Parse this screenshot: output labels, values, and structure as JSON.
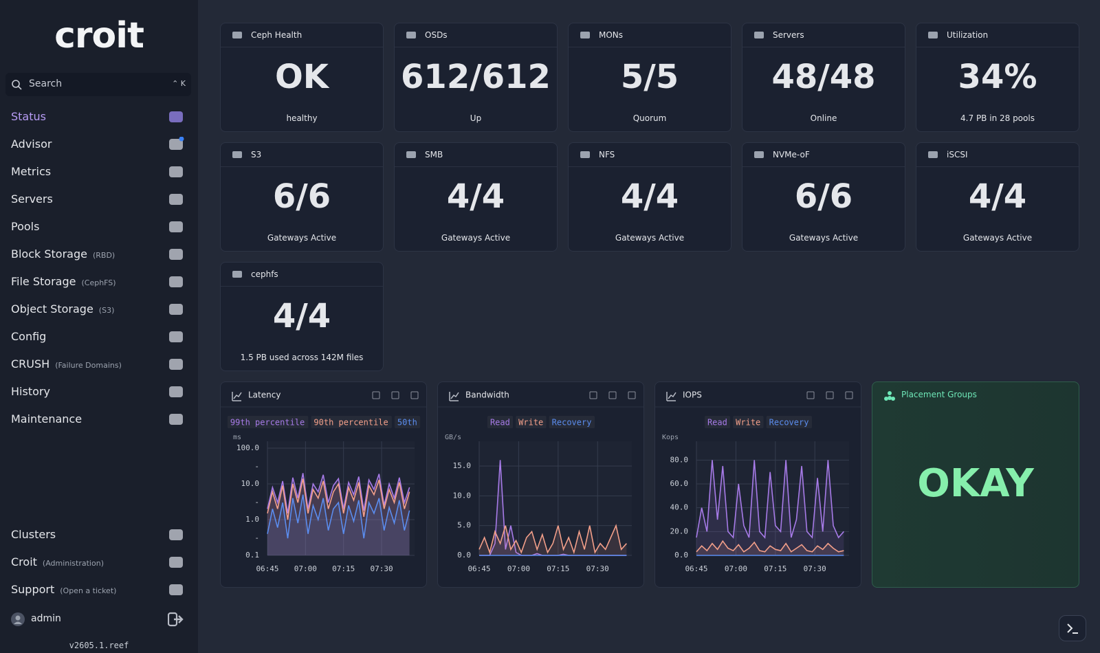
{
  "sidebar": {
    "logo": "croit",
    "search": {
      "placeholder": "Search",
      "shortcut": "⌃ K"
    },
    "nav": [
      {
        "label": "Status"
      },
      {
        "label": "Advisor"
      },
      {
        "label": "Metrics"
      },
      {
        "label": "Servers"
      },
      {
        "label": "Pools"
      },
      {
        "label": "Block Storage",
        "note": "(RBD)"
      },
      {
        "label": "File Storage",
        "note": "(CephFS)"
      },
      {
        "label": "Object Storage",
        "note": "(S3)"
      },
      {
        "label": "Config"
      },
      {
        "label": "CRUSH",
        "note": "(Failure Domains)"
      },
      {
        "label": "History"
      },
      {
        "label": "Maintenance"
      }
    ],
    "bottom_nav": [
      {
        "label": "Clusters"
      },
      {
        "label": "Croit",
        "note": "(Administration)"
      },
      {
        "label": "Support",
        "note": "(Open a ticket)"
      }
    ],
    "user": "admin",
    "version": "v2605.1.reef"
  },
  "cards": [
    {
      "title": "Ceph Health",
      "value": "OK",
      "caption": "healthy"
    },
    {
      "title": "OSDs",
      "value": "612/612",
      "caption": "Up"
    },
    {
      "title": "MONs",
      "value": "5/5",
      "caption": "Quorum"
    },
    {
      "title": "Servers",
      "value": "48/48",
      "caption": "Online"
    },
    {
      "title": "Utilization",
      "value": "34%",
      "caption": "4.7 PB in 28 pools"
    },
    {
      "title": "S3",
      "value": "6/6",
      "caption": "Gateways Active"
    },
    {
      "title": "SMB",
      "value": "4/4",
      "caption": "Gateways Active"
    },
    {
      "title": "NFS",
      "value": "4/4",
      "caption": "Gateways Active"
    },
    {
      "title": "NVMe-oF",
      "value": "6/6",
      "caption": "Gateways Active"
    },
    {
      "title": "iSCSI",
      "value": "4/4",
      "caption": "Gateways Active"
    },
    {
      "title": "cephfs",
      "value": "4/4",
      "caption": "1.5 PB used across 142M files"
    }
  ],
  "charts": [
    {
      "type": "line",
      "title": "Latency",
      "unit": "ms",
      "log_scale": true,
      "grid": true,
      "x": [
        405,
        407,
        409,
        411,
        413,
        415,
        417,
        419,
        421,
        423,
        425,
        427,
        429,
        431,
        433,
        435,
        437,
        439,
        441,
        443,
        445,
        447,
        449,
        451,
        453,
        455,
        457,
        459,
        461
      ],
      "xlim": [
        405,
        463
      ],
      "xticks": [
        {
          "value": 405,
          "label": "06:45"
        },
        {
          "value": 420,
          "label": "07:00"
        },
        {
          "value": 435,
          "label": "07:15"
        },
        {
          "value": 450,
          "label": "07:30"
        }
      ],
      "ylim": [
        0.1,
        100
      ],
      "yticks": [
        0.1,
        {
          "value": 0.3,
          "label": "-"
        },
        {
          "value": 1,
          "label": "1.0"
        },
        {
          "value": 3,
          "label": "-"
        },
        {
          "value": 10,
          "label": "10.0"
        },
        {
          "value": 30,
          "label": "-"
        },
        {
          "value": 100,
          "label": "100.0"
        }
      ],
      "series": [
        {
          "name": "99th percentile",
          "color": "#a77be8",
          "values": [
            2,
            8,
            3,
            12,
            1.5,
            15,
            4,
            20,
            2,
            10,
            6,
            18,
            3,
            9,
            14,
            2,
            11,
            5,
            16,
            1.8,
            13,
            7,
            19,
            2.5,
            10,
            4,
            15,
            3,
            8
          ]
        },
        {
          "name": "90th percentile",
          "color": "#f4a08a",
          "values": [
            1.5,
            6,
            2,
            9,
            1,
            10,
            3,
            14,
            1.5,
            7,
            4,
            12,
            2,
            6,
            10,
            1.5,
            8,
            3.5,
            11,
            1.2,
            9,
            5,
            13,
            2,
            7,
            3,
            11,
            2,
            6
          ]
        },
        {
          "name": "50th",
          "color": "#5b8def",
          "values": [
            0.4,
            2,
            0.6,
            3,
            0.3,
            4,
            0.8,
            5,
            0.4,
            2.5,
            1,
            4,
            0.5,
            2,
            3,
            0.4,
            2.5,
            0.9,
            3.5,
            0.3,
            3,
            1.5,
            4,
            0.5,
            2.2,
            0.8,
            3.5,
            0.5,
            1.8
          ]
        }
      ]
    },
    {
      "type": "line",
      "title": "Bandwidth",
      "unit": "GB/s",
      "log_scale": false,
      "grid": true,
      "x": [
        405,
        407,
        409,
        411,
        413,
        415,
        417,
        419,
        421,
        423,
        425,
        427,
        429,
        431,
        433,
        435,
        437,
        439,
        441,
        443,
        445,
        447,
        449,
        451,
        453,
        455,
        457,
        459,
        461
      ],
      "xlim": [
        405,
        463
      ],
      "xticks": [
        {
          "value": 405,
          "label": "06:45"
        },
        {
          "value": 420,
          "label": "07:00"
        },
        {
          "value": 435,
          "label": "07:15"
        },
        {
          "value": 450,
          "label": "07:30"
        }
      ],
      "ylim": [
        0,
        18
      ],
      "yticks": [
        {
          "value": 0,
          "label": "0.0"
        },
        {
          "value": 5,
          "label": "5.0"
        },
        {
          "value": 10,
          "label": "10.0"
        },
        {
          "value": 15,
          "label": "15.0"
        }
      ],
      "series": [
        {
          "name": "Read",
          "color": "#a77be8",
          "values": [
            0,
            0,
            0,
            2,
            16,
            1,
            5,
            0.5,
            0,
            0,
            0,
            0.3,
            0,
            0,
            0,
            0,
            0.2,
            0,
            0,
            0,
            0,
            0,
            0,
            0,
            0,
            0,
            0,
            0,
            0
          ]
        },
        {
          "name": "Write",
          "color": "#f4a08a",
          "values": [
            1,
            3,
            0.5,
            4,
            2,
            5,
            1,
            2.5,
            0.5,
            3,
            4,
            1,
            3.5,
            0.5,
            2,
            5,
            1,
            3,
            0.5,
            4,
            1,
            5,
            0.5,
            2,
            1,
            3,
            5,
            1,
            2
          ]
        },
        {
          "name": "Recovery",
          "color": "#5b8def",
          "values": [
            0,
            0,
            0,
            0,
            0,
            0,
            0,
            0,
            0,
            0,
            0,
            0,
            0,
            0,
            0,
            0,
            0,
            0,
            0,
            0,
            0,
            0,
            0,
            0,
            0,
            0,
            0,
            0,
            0
          ]
        }
      ]
    },
    {
      "type": "line",
      "title": "IOPS",
      "unit": "Kops",
      "log_scale": false,
      "grid": true,
      "x": [
        405,
        407,
        409,
        411,
        413,
        415,
        417,
        419,
        421,
        423,
        425,
        427,
        429,
        431,
        433,
        435,
        437,
        439,
        441,
        443,
        445,
        447,
        449,
        451,
        453,
        455,
        457,
        459,
        461
      ],
      "xlim": [
        405,
        463
      ],
      "xticks": [
        {
          "value": 405,
          "label": "06:45"
        },
        {
          "value": 420,
          "label": "07:00"
        },
        {
          "value": 435,
          "label": "07:15"
        },
        {
          "value": 450,
          "label": "07:30"
        }
      ],
      "ylim": [
        0,
        90
      ],
      "yticks": [
        {
          "value": 0,
          "label": "0.0"
        },
        {
          "value": 20,
          "label": "20.0"
        },
        {
          "value": 40,
          "label": "40.0"
        },
        {
          "value": 60,
          "label": "60.0"
        },
        {
          "value": 80,
          "label": "80.0"
        }
      ],
      "series": [
        {
          "name": "Read",
          "color": "#a77be8",
          "values": [
            15,
            40,
            20,
            80,
            30,
            75,
            20,
            15,
            60,
            25,
            15,
            80,
            20,
            15,
            70,
            25,
            20,
            80,
            15,
            30,
            75,
            20,
            15,
            65,
            20,
            80,
            25,
            15,
            20
          ]
        },
        {
          "name": "Write",
          "color": "#f4a08a",
          "values": [
            3,
            8,
            4,
            10,
            5,
            12,
            6,
            4,
            9,
            3,
            6,
            11,
            4,
            3,
            8,
            5,
            4,
            10,
            3,
            6,
            9,
            4,
            3,
            8,
            5,
            10,
            6,
            3,
            4
          ]
        },
        {
          "name": "Recovery",
          "color": "#5b8def",
          "values": [
            0,
            0,
            0,
            0,
            0,
            0,
            0,
            0,
            0,
            0,
            0,
            0,
            0,
            0,
            0,
            0,
            0,
            0,
            0,
            0,
            0,
            0,
            0,
            0,
            0,
            0,
            0,
            0,
            0
          ]
        }
      ]
    }
  ],
  "placement_groups": {
    "title": "Placement Groups",
    "status": "OKAY"
  }
}
